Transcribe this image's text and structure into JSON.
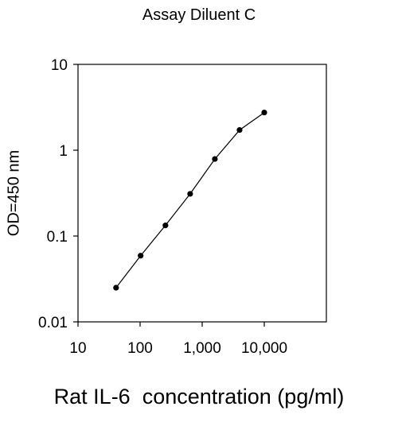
{
  "chart_data": {
    "type": "line",
    "title": "Assay Diluent C",
    "xlabel": "Rat IL-6  concentration (pg/ml)",
    "ylabel": "OD=450 nm",
    "x_scale": "log",
    "y_scale": "log",
    "xlim": [
      10,
      100000
    ],
    "ylim": [
      0.01,
      10
    ],
    "x_ticks": [
      10,
      100,
      1000,
      10000
    ],
    "x_tick_labels": [
      "10",
      "100",
      "1,000",
      "10,000"
    ],
    "y_ticks": [
      0.01,
      0.1,
      1,
      10
    ],
    "y_tick_labels": [
      "0.01",
      "0.1",
      "1",
      "10"
    ],
    "grid": false,
    "series": [
      {
        "x": [
          41,
          102,
          256,
          640,
          1600,
          4000,
          10000
        ],
        "y": [
          0.025,
          0.059,
          0.133,
          0.31,
          0.79,
          1.72,
          2.75
        ],
        "color": "#000000",
        "marker": "circle"
      }
    ]
  }
}
